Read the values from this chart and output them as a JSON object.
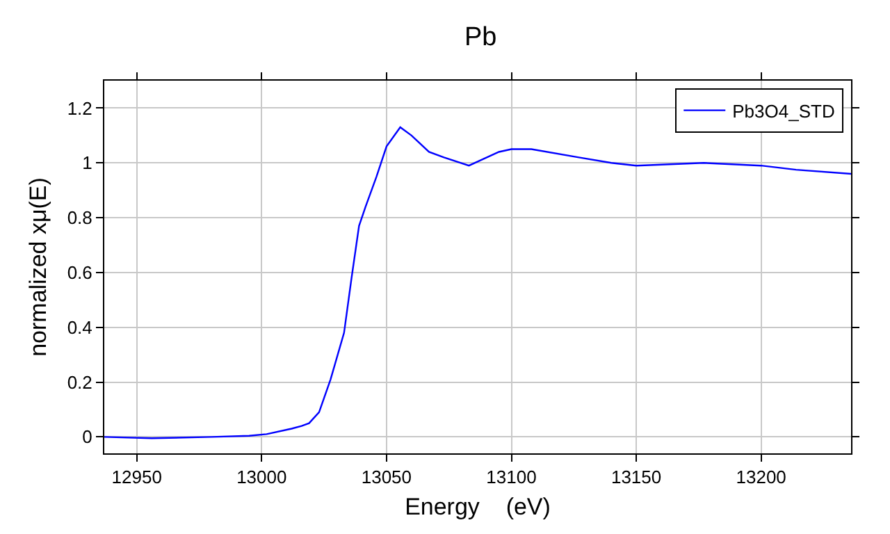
{
  "chart_data": {
    "type": "line",
    "title": "Pb",
    "xlabel": "Energy    (eV)",
    "ylabel": "normalized xμ(E)",
    "xlim": [
      12937,
      13236
    ],
    "xticks": [
      12950,
      13000,
      13050,
      13100,
      13150,
      13200
    ],
    "ylim": [
      -0.06,
      1.3
    ],
    "yticks": [
      0,
      0.2,
      0.4,
      0.6,
      0.8,
      1,
      1.2
    ],
    "grid": true,
    "legend": "top right",
    "marker": "none",
    "line_style": "solid",
    "series": [
      {
        "name": "Pb3O4_STD",
        "color": "#0000ff",
        "x": [
          12937,
          12956,
          12980,
          12995,
          13002,
          13012,
          13016,
          13019,
          13023,
          13027.6,
          13033,
          13036,
          13039,
          13041.6,
          13046,
          13050,
          13055.5,
          13060,
          13067,
          13073,
          13083,
          13095,
          13100,
          13108,
          13127,
          13140,
          13150,
          13177,
          13200,
          13214,
          13236
        ],
        "values": [
          0,
          -0.005,
          0,
          0.004,
          0.01,
          0.03,
          0.04,
          0.05,
          0.09,
          0.21,
          0.38,
          0.58,
          0.77,
          0.84,
          0.95,
          1.06,
          1.13,
          1.1,
          1.04,
          1.02,
          0.99,
          1.04,
          1.05,
          1.05,
          1.02,
          1,
          0.99,
          1,
          0.99,
          0.975,
          0.96
        ]
      }
    ]
  }
}
